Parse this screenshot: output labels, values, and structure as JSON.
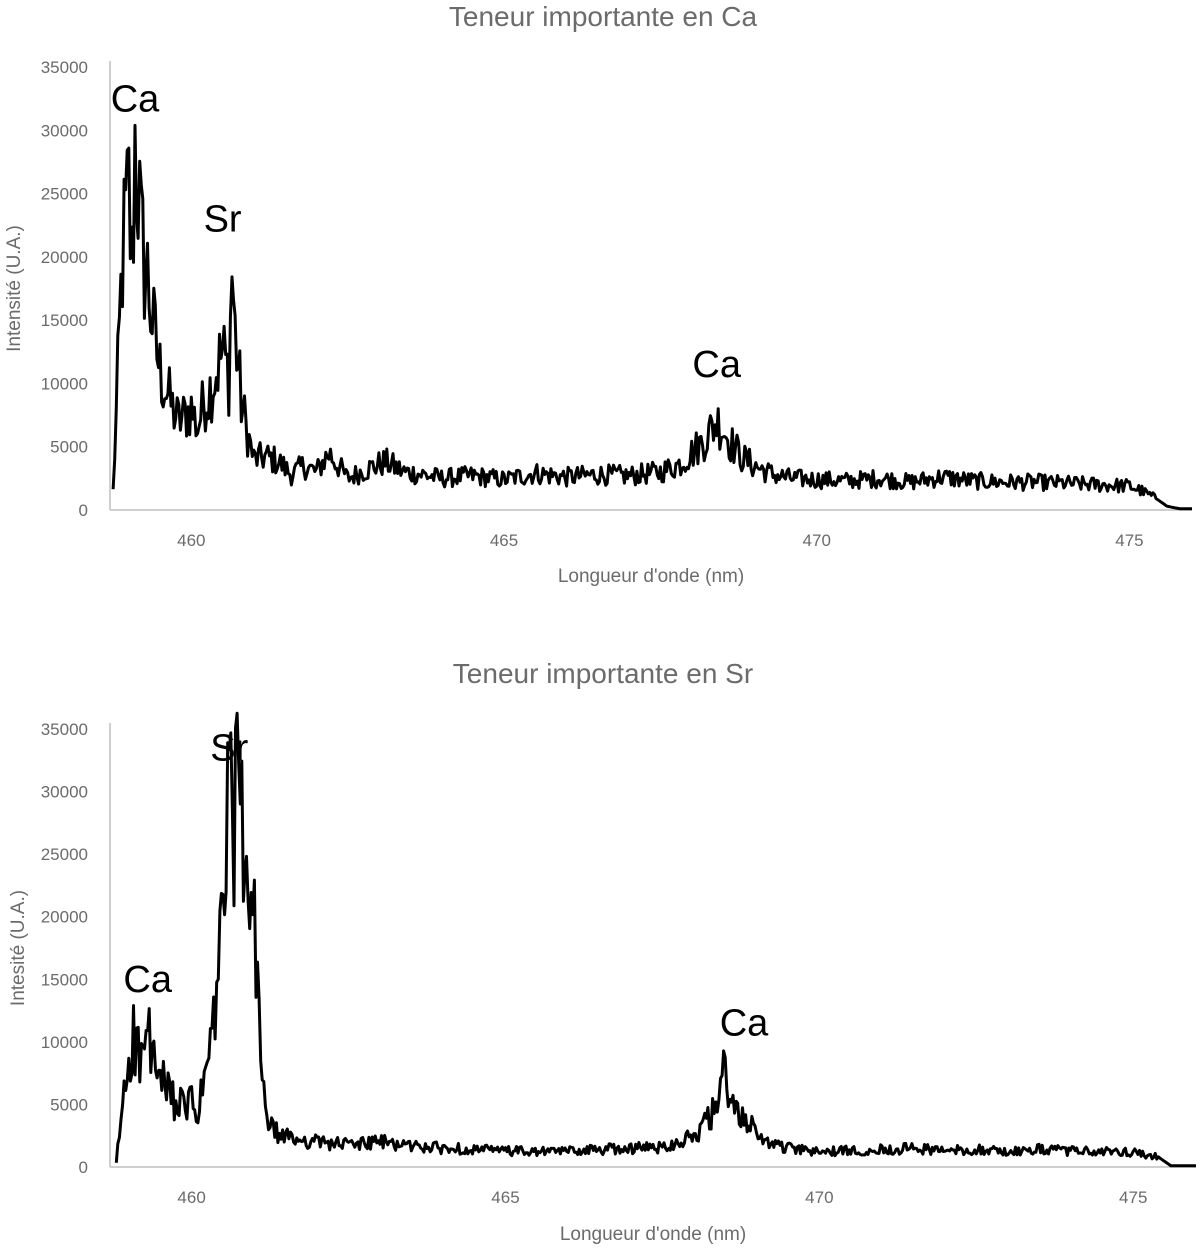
{
  "chart_data": [
    {
      "type": "line",
      "title": "Teneur importante en Ca",
      "xlabel": "Longueur d'onde (nm)",
      "ylabel": "Intensité (U.A.)",
      "xlim": [
        458.7,
        476.0
      ],
      "ylim": [
        0,
        35000
      ],
      "xticks": [
        460,
        465,
        470,
        475
      ],
      "yticks": [
        0,
        5000,
        10000,
        15000,
        20000,
        25000,
        30000,
        35000
      ],
      "grid": false,
      "legend": "none",
      "annotations": [
        {
          "text": "Ca",
          "x": 459.1,
          "y": 31500
        },
        {
          "text": "Sr",
          "x": 460.5,
          "y": 22000
        },
        {
          "text": "Ca",
          "x": 468.4,
          "y": 10500
        }
      ],
      "x": [
        458.75,
        458.8,
        458.9,
        459.0,
        459.05,
        459.1,
        459.15,
        459.2,
        459.3,
        459.4,
        459.5,
        459.6,
        459.7,
        459.8,
        459.9,
        460.0,
        460.1,
        460.2,
        460.3,
        460.4,
        460.5,
        460.6,
        460.65,
        460.7,
        460.8,
        460.9,
        461.0,
        461.2,
        461.4,
        461.6,
        461.8,
        462.0,
        462.2,
        462.5,
        462.8,
        463.1,
        463.4,
        463.7,
        464.0,
        464.5,
        465.0,
        465.5,
        466.0,
        466.5,
        467.0,
        467.5,
        467.8,
        468.0,
        468.2,
        468.4,
        468.5,
        468.6,
        468.8,
        469.0,
        469.3,
        469.6,
        470.0,
        470.5,
        471.0,
        471.5,
        472.0,
        472.5,
        473.0,
        473.5,
        474.0,
        474.5,
        475.0,
        475.2,
        475.4,
        475.6,
        475.8,
        476.0
      ],
      "y": [
        1500,
        7500,
        20000,
        25000,
        19000,
        29000,
        26000,
        21000,
        18500,
        14000,
        11000,
        9500,
        8000,
        7000,
        7500,
        8000,
        6500,
        8500,
        9500,
        11000,
        12500,
        10500,
        19000,
        14000,
        8500,
        6000,
        4000,
        4200,
        3800,
        2800,
        3500,
        3000,
        4500,
        2500,
        3200,
        3800,
        3000,
        2800,
        2500,
        2700,
        2400,
        2900,
        2600,
        2800,
        2700,
        3000,
        3600,
        4500,
        5500,
        7000,
        6500,
        5500,
        4200,
        3500,
        2800,
        2500,
        2400,
        2300,
        2500,
        2200,
        2600,
        2300,
        2200,
        2200,
        2100,
        2000,
        1900,
        1500,
        1000,
        300,
        100,
        100
      ]
    },
    {
      "type": "line",
      "title": "Teneur importante en Sr",
      "xlabel": "Longueur d'onde (nm)",
      "ylabel": "Intesité (U.A.)",
      "xlim": [
        458.7,
        476.0
      ],
      "ylim": [
        0,
        35000
      ],
      "xticks": [
        460,
        465,
        470,
        475
      ],
      "yticks": [
        0,
        5000,
        10000,
        15000,
        20000,
        25000,
        30000,
        35000
      ],
      "grid": false,
      "legend": "none",
      "annotations": [
        {
          "text": "Sr",
          "x": 460.6,
          "y": 32500
        },
        {
          "text": "Ca",
          "x": 459.3,
          "y": 14000
        },
        {
          "text": "Ca",
          "x": 468.8,
          "y": 10500
        }
      ],
      "x": [
        458.8,
        458.9,
        459.0,
        459.1,
        459.2,
        459.3,
        459.4,
        459.5,
        459.6,
        459.7,
        459.8,
        459.9,
        460.0,
        460.1,
        460.2,
        460.3,
        460.4,
        460.5,
        460.6,
        460.7,
        460.8,
        460.9,
        461.0,
        461.1,
        461.2,
        461.4,
        461.7,
        462.0,
        462.5,
        463.0,
        463.5,
        464.0,
        464.5,
        465.0,
        465.5,
        466.0,
        466.5,
        467.0,
        467.5,
        468.0,
        468.2,
        468.4,
        468.5,
        468.6,
        468.8,
        469.0,
        469.3,
        469.6,
        470.0,
        470.5,
        471.0,
        471.5,
        472.0,
        472.5,
        473.0,
        473.5,
        474.0,
        474.5,
        475.0,
        475.2,
        475.4,
        475.6,
        475.8,
        476.0
      ],
      "y": [
        300,
        5000,
        9000,
        10500,
        8000,
        11000,
        8000,
        7000,
        6000,
        5500,
        5000,
        4500,
        5500,
        4000,
        7000,
        9500,
        13000,
        22000,
        28000,
        30000,
        26000,
        21000,
        18000,
        10000,
        3500,
        2500,
        2200,
        2000,
        1800,
        2000,
        1700,
        1500,
        1400,
        1300,
        1200,
        1300,
        1400,
        1500,
        1600,
        2500,
        3500,
        5000,
        8000,
        4500,
        4200,
        2500,
        1800,
        1400,
        1200,
        1300,
        1400,
        1500,
        1300,
        1400,
        1200,
        1400,
        1300,
        1200,
        1200,
        1000,
        800,
        100,
        100,
        100
      ]
    }
  ]
}
